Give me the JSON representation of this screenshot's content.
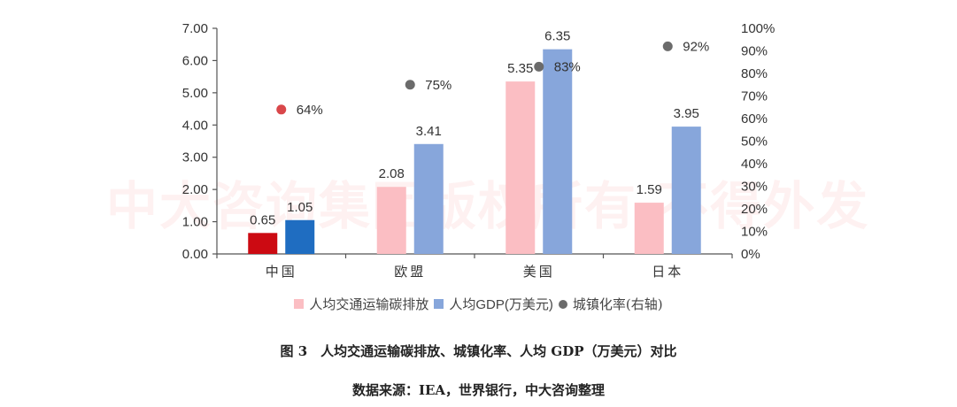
{
  "chart_data": {
    "type": "bar",
    "title": "图 3　人均交通运输碳排放、城镇化率、人均 GDP（万美元）对比",
    "source": "数据来源：IEA，世界银行，中大咨询整理",
    "categories": [
      "中国",
      "欧盟",
      "美国",
      "日本"
    ],
    "series": [
      {
        "name": "人均交通运输碳排放",
        "type": "bar",
        "axis": "left",
        "values": [
          0.65,
          2.08,
          5.35,
          1.59
        ],
        "labels": [
          "0.65",
          "2.08",
          "5.35",
          "1.59"
        ]
      },
      {
        "name": "人均GDP(万美元)",
        "type": "bar",
        "axis": "left",
        "values": [
          1.05,
          3.41,
          6.35,
          3.95
        ],
        "labels": [
          "1.05",
          "3.41",
          "6.35",
          "3.95"
        ]
      },
      {
        "name": "城镇化率(右轴)",
        "type": "scatter",
        "axis": "right",
        "values": [
          0.64,
          0.75,
          0.83,
          0.92
        ],
        "labels": [
          "64%",
          "75%",
          "83%",
          "92%"
        ]
      }
    ],
    "left_axis": {
      "ylim": [
        0,
        7
      ],
      "ticks": [
        "0.00",
        "1.00",
        "2.00",
        "3.00",
        "4.00",
        "5.00",
        "6.00",
        "7.00"
      ]
    },
    "right_axis": {
      "ylim": [
        0,
        1
      ],
      "ticks": [
        "0%",
        "10%",
        "20%",
        "30%",
        "40%",
        "50%",
        "60%",
        "70%",
        "80%",
        "90%",
        "100%"
      ]
    },
    "xlabel": "",
    "ylabel": "",
    "grid": false,
    "legend_position": "bottom",
    "colors": {
      "emission": "#fbbec3",
      "gdp": "#87a6db",
      "urban": "#6b6b6b",
      "china_emission": "#cc0a12",
      "china_gdp": "#1f6dc1",
      "china_urban": "#d9474a"
    }
  },
  "legend": {
    "items": [
      {
        "label": "人均交通运输碳排放",
        "color": "#fbbec3"
      },
      {
        "label": "人均GDP(万美元)",
        "color": "#87a6db"
      },
      {
        "label": "城镇化率(右轴)",
        "color": "#6b6b6b"
      }
    ]
  },
  "caption": "图 3　人均交通运输碳排放、城镇化率、人均 GDP（万美元）对比",
  "source": "数据来源：IEA，世界银行，中大咨询整理",
  "watermark": "中大咨询集团版权所有 不得外发"
}
